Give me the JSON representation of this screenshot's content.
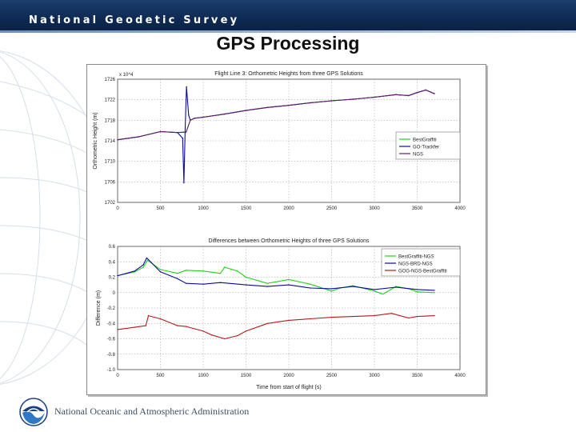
{
  "header": {
    "org_name": "National Geodetic Survey"
  },
  "slide": {
    "title": "GPS Processing"
  },
  "footer": {
    "agency": "National Oceanic and Atmospheric Administration"
  },
  "colors": {
    "header_band": "#0f2c55",
    "green": "#1fd21f",
    "blue": "#0c0c9c",
    "red": "#b81818",
    "purple": "#6a1a72"
  },
  "icons": {
    "footer_logo": "noaa-logo-icon"
  },
  "chart_data": [
    {
      "type": "line",
      "title": "Flight Line 3: Orthometric Heights from three GPS Solutions",
      "ylabel": "Orthometric Height (m)",
      "xlabel": "",
      "exponent_label": "x 10^4",
      "xlim": [
        0,
        4000
      ],
      "ylim": [
        1702,
        1726
      ],
      "x_tick_labels": [
        "0",
        "500",
        "1000",
        "1500",
        "2000",
        "2500",
        "3000",
        "3500",
        "4000"
      ],
      "y_ticks": [
        1702,
        1706,
        1710,
        1714,
        1718,
        1722,
        1726
      ],
      "y_tick_labels": [
        "1702",
        "1706",
        "1710",
        "1714",
        "1718",
        "1722",
        "1726"
      ],
      "grid": true,
      "legend_position": "right-middle",
      "series": [
        {
          "name": "BestGraffiti",
          "color": "#1fd21f",
          "x": [
            0,
            250,
            500,
            700,
            800,
            850,
            900,
            1000,
            1250,
            1500,
            1750,
            2000,
            2250,
            2500,
            2750,
            3000,
            3250,
            3400,
            3500,
            3600,
            3700
          ],
          "y": [
            1714.2,
            1714.8,
            1715.8,
            1715.6,
            1715.7,
            1718.0,
            1718.4,
            1718.6,
            1719.2,
            1719.9,
            1720.5,
            1720.9,
            1721.4,
            1721.8,
            1722.1,
            1722.5,
            1723.0,
            1722.8,
            1723.4,
            1723.9,
            1723.2
          ]
        },
        {
          "name": "GO-Trackfer",
          "color": "#0c0c9c",
          "x": [
            0,
            250,
            500,
            700,
            760,
            775,
            790,
            805,
            830,
            850,
            900,
            1000,
            1250,
            1500,
            1750,
            2000,
            2250,
            2500,
            2750,
            3000,
            3250,
            3400,
            3500,
            3600,
            3700
          ],
          "y": [
            1714.2,
            1714.8,
            1715.8,
            1715.6,
            1714.5,
            1705.8,
            1716.5,
            1724.5,
            1719.0,
            1718.0,
            1718.4,
            1718.6,
            1719.2,
            1719.9,
            1720.5,
            1720.9,
            1721.4,
            1721.8,
            1722.1,
            1722.5,
            1723.0,
            1722.8,
            1723.4,
            1723.9,
            1723.2
          ]
        },
        {
          "name": "NGS",
          "color": "#6a1a72",
          "x": [
            0,
            250,
            500,
            700,
            800,
            850,
            900,
            1000,
            1250,
            1500,
            1750,
            2000,
            2250,
            2500,
            2750,
            3000,
            3250,
            3400,
            3500,
            3600,
            3700
          ],
          "y": [
            1714.2,
            1714.8,
            1715.8,
            1715.6,
            1715.7,
            1718.0,
            1718.4,
            1718.6,
            1719.2,
            1719.9,
            1720.5,
            1720.9,
            1721.4,
            1721.8,
            1722.1,
            1722.5,
            1723.0,
            1722.8,
            1723.4,
            1723.9,
            1723.2
          ]
        }
      ]
    },
    {
      "type": "line",
      "title": "Differences between Orthometric Heights of three GPS Solutions",
      "ylabel": "Difference (m)",
      "xlabel": "Time from start of flight (s)",
      "xlim": [
        0,
        4000
      ],
      "ylim": [
        -1.0,
        0.6
      ],
      "x_tick_labels": [
        "0",
        "500",
        "1000",
        "1500",
        "2000",
        "2500",
        "3000",
        "3500",
        "4000"
      ],
      "y_ticks": [
        -1.0,
        -0.8,
        -0.6,
        -0.4,
        -0.2,
        0,
        0.2,
        0.4,
        0.6
      ],
      "y_tick_labels": [
        "-1.0",
        "-0.8",
        "-0.6",
        "-0.4",
        "-0.2",
        "0",
        "0.2",
        "0.4",
        "0.6"
      ],
      "grid": true,
      "legend_position": "top-right",
      "series": [
        {
          "name": "BestGraffiti-NGS",
          "color": "#1fd21f",
          "x": [
            0,
            200,
            300,
            350,
            500,
            700,
            800,
            1000,
            1200,
            1250,
            1400,
            1500,
            1750,
            2000,
            2250,
            2500,
            2600,
            2750,
            3000,
            3100,
            3250,
            3400,
            3500,
            3700
          ],
          "y": [
            0.22,
            0.27,
            0.33,
            0.42,
            0.3,
            0.25,
            0.29,
            0.28,
            0.25,
            0.33,
            0.28,
            0.2,
            0.12,
            0.17,
            0.11,
            0.02,
            0.06,
            0.09,
            0.02,
            -0.02,
            0.08,
            0.05,
            0.01,
            0.0
          ]
        },
        {
          "name": "NGS-BRD-NGS",
          "color": "#0c0c9c",
          "x": [
            0,
            200,
            300,
            340,
            500,
            700,
            800,
            1000,
            1200,
            1500,
            1750,
            2000,
            2250,
            2500,
            2750,
            3000,
            3250,
            3500,
            3700
          ],
          "y": [
            0.22,
            0.28,
            0.36,
            0.45,
            0.27,
            0.18,
            0.12,
            0.11,
            0.13,
            0.1,
            0.08,
            0.1,
            0.06,
            0.05,
            0.08,
            0.04,
            0.07,
            0.04,
            0.03
          ]
        },
        {
          "name": "GOG-NGS-BestGraffiti",
          "color": "#b81818",
          "x": [
            0,
            200,
            330,
            360,
            500,
            700,
            800,
            1000,
            1100,
            1250,
            1400,
            1500,
            1750,
            2000,
            2250,
            2500,
            2750,
            3000,
            3200,
            3400,
            3500,
            3700
          ],
          "y": [
            -0.48,
            -0.45,
            -0.43,
            -0.3,
            -0.34,
            -0.43,
            -0.44,
            -0.5,
            -0.55,
            -0.6,
            -0.56,
            -0.5,
            -0.4,
            -0.36,
            -0.34,
            -0.32,
            -0.31,
            -0.3,
            -0.27,
            -0.33,
            -0.31,
            -0.3
          ]
        }
      ]
    }
  ]
}
